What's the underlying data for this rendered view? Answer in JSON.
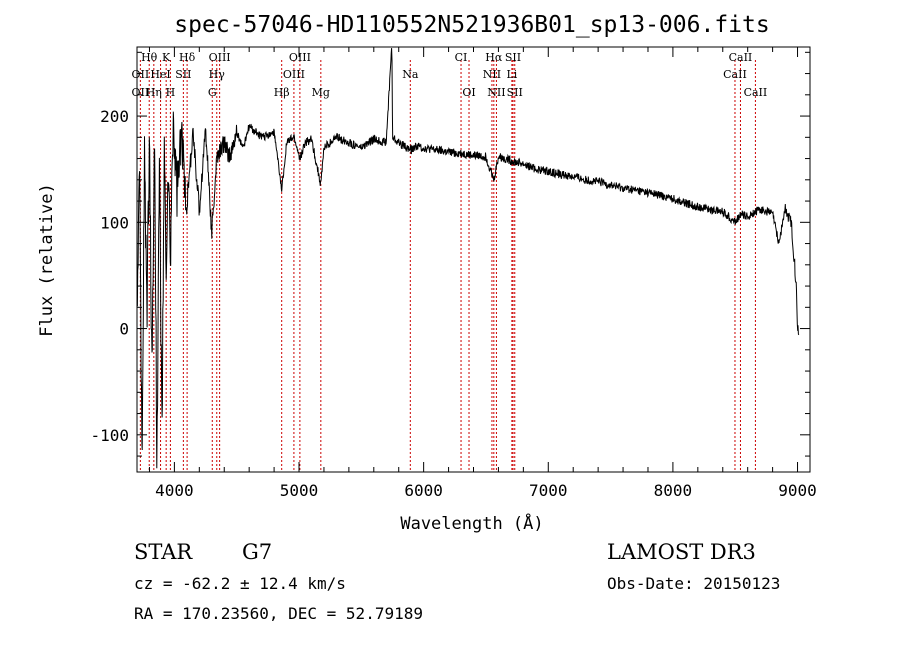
{
  "chart_data": {
    "type": "line",
    "title": "spec-57046-HD110552N521936B01_sp13-006.fits",
    "xlabel": "Wavelength (Å)",
    "ylabel": "Flux (relative)",
    "xlim": [
      3700,
      9100
    ],
    "ylim": [
      -135,
      265
    ],
    "xticks": [
      4000,
      5000,
      6000,
      7000,
      8000,
      9000
    ],
    "yticks": [
      -100,
      0,
      100,
      200
    ],
    "series": [
      {
        "name": "spectrum",
        "x": [
          3700,
          3720,
          3740,
          3760,
          3780,
          3800,
          3820,
          3840,
          3860,
          3880,
          3900,
          3920,
          3933,
          3950,
          3968,
          3990,
          4020,
          4060,
          4102,
          4150,
          4200,
          4250,
          4300,
          4340,
          4400,
          4450,
          4500,
          4550,
          4600,
          4700,
          4800,
          4861,
          4900,
          4960,
          5007,
          5050,
          5100,
          5175,
          5200,
          5300,
          5400,
          5500,
          5600,
          5700,
          5745,
          5750,
          5800,
          5893,
          5950,
          6000,
          6100,
          6200,
          6300,
          6400,
          6500,
          6563,
          6600,
          6700,
          6800,
          6900,
          7000,
          7100,
          7200,
          7300,
          7400,
          7500,
          7600,
          7700,
          7800,
          7900,
          8000,
          8100,
          8200,
          8300,
          8400,
          8500,
          8542,
          8600,
          8662,
          8700,
          8800,
          8850,
          8900,
          8950,
          8990,
          9000,
          9010
        ],
        "values": [
          30,
          150,
          -130,
          170,
          20,
          180,
          -40,
          190,
          -120,
          160,
          -100,
          170,
          50,
          150,
          60,
          200,
          130,
          180,
          120,
          185,
          110,
          190,
          90,
          160,
          175,
          160,
          185,
          170,
          190,
          180,
          185,
          130,
          175,
          180,
          160,
          175,
          178,
          135,
          170,
          180,
          175,
          170,
          178,
          175,
          270,
          180,
          175,
          168,
          172,
          170,
          168,
          166,
          165,
          163,
          162,
          140,
          162,
          158,
          155,
          150,
          148,
          145,
          143,
          140,
          138,
          135,
          132,
          130,
          128,
          125,
          122,
          118,
          115,
          112,
          110,
          100,
          108,
          105,
          110,
          112,
          108,
          80,
          112,
          100,
          40,
          0,
          0
        ]
      }
    ],
    "line_labels": [
      {
        "name": "Hθ",
        "wl": 3798,
        "row": 0
      },
      {
        "name": "K",
        "wl": 3934,
        "row": 0
      },
      {
        "name": "Hδ",
        "wl": 4102,
        "row": 0
      },
      {
        "name": "OIII",
        "wl": 4363,
        "row": 0
      },
      {
        "name": "OIII",
        "wl": 5007,
        "row": 0
      },
      {
        "name": "CI",
        "wl": 6300,
        "row": 0
      },
      {
        "name": "Hα",
        "wl": 6563,
        "row": 0
      },
      {
        "name": "SII",
        "wl": 6717,
        "row": 0
      },
      {
        "name": "CaII",
        "wl": 8542,
        "row": 0
      },
      {
        "name": "OII",
        "wl": 3727,
        "row": 1
      },
      {
        "name": "HeI",
        "wl": 3889,
        "row": 1
      },
      {
        "name": "SII",
        "wl": 4072,
        "row": 1
      },
      {
        "name": "Hγ",
        "wl": 4340,
        "row": 1
      },
      {
        "name": "OIII",
        "wl": 4959,
        "row": 1
      },
      {
        "name": "Na",
        "wl": 5893,
        "row": 1
      },
      {
        "name": "NII",
        "wl": 6548,
        "row": 1
      },
      {
        "name": "Li",
        "wl": 6708,
        "row": 1
      },
      {
        "name": "CaII",
        "wl": 8498,
        "row": 1
      },
      {
        "name": "OII",
        "wl": 3727,
        "row": 2
      },
      {
        "name": "Hη",
        "wl": 3835,
        "row": 2
      },
      {
        "name": "H",
        "wl": 3968,
        "row": 2
      },
      {
        "name": "G",
        "wl": 4304,
        "row": 2
      },
      {
        "name": "Hβ",
        "wl": 4861,
        "row": 2
      },
      {
        "name": "Mg",
        "wl": 5175,
        "row": 2
      },
      {
        "name": "OI",
        "wl": 6364,
        "row": 2
      },
      {
        "name": "NII",
        "wl": 6584,
        "row": 2
      },
      {
        "name": "SII",
        "wl": 6731,
        "row": 2
      },
      {
        "name": "CaII",
        "wl": 8662,
        "row": 2
      }
    ],
    "marker_lines": [
      3727,
      3798,
      3835,
      3889,
      3934,
      3968,
      4072,
      4102,
      4304,
      4340,
      4363,
      4861,
      4959,
      5007,
      5175,
      5893,
      6300,
      6364,
      6548,
      6563,
      6584,
      6708,
      6717,
      6731,
      8498,
      8542,
      8662
    ],
    "colors": {
      "spectrum": "#000000",
      "marker": "#cc0000",
      "axis": "#000000"
    }
  },
  "info": {
    "object_class": "STAR",
    "subclass": "G7",
    "survey": "LAMOST DR3",
    "cz": "cz = -62.2 ± 12.4 km/s",
    "obs_date": "Obs-Date: 20150123",
    "coords": "RA = 170.23560, DEC =  52.79189"
  }
}
